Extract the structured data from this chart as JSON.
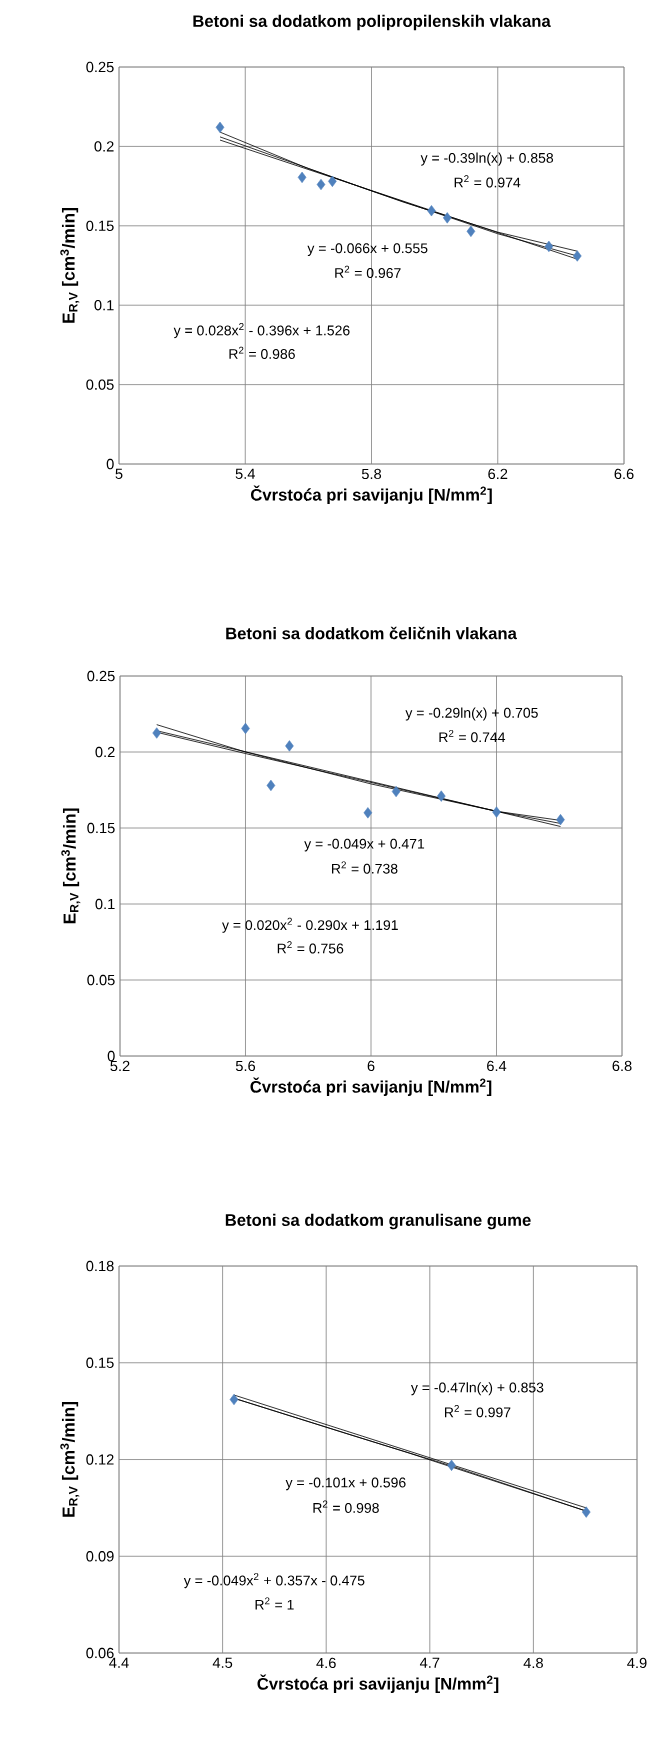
{
  "chart_data": [
    {
      "type": "scatter",
      "title": "Betoni sa dodatkom polipropilenskih vlakana",
      "xlabel": "Čvrstoća pri savijanju [N/mm$^{2}$]",
      "ylabel": "E$_{R,V}$ [cm$^{3}$/min]",
      "xlim": [
        5,
        6.6
      ],
      "xticks": [
        5,
        5.4,
        5.8,
        6.2,
        6.6
      ],
      "ylim": [
        0,
        0.25
      ],
      "yticks": [
        0,
        0.05,
        0.1,
        0.15,
        0.2,
        0.25
      ],
      "grid": true,
      "marker": "diamond",
      "series": [
        {
          "color": "#4f81bd",
          "x": [
            5.32,
            5.58,
            5.64,
            5.676,
            5.99,
            6.04,
            6.115,
            6.362,
            6.452
          ],
          "values": [
            0.212,
            0.1805,
            0.176,
            0.178,
            0.1595,
            0.155,
            0.1465,
            0.137,
            0.131
          ]
        },
        {
          "type": "line",
          "marker": "none",
          "color": "#000000",
          "x": [
            5.32,
            6.452
          ],
          "values": [
            0.204,
            0.129
          ]
        },
        {
          "type": "line",
          "marker": "none",
          "color": "#000000",
          "x": [
            5.32,
            5.8,
            6.2,
            6.452
          ],
          "values": [
            0.206,
            0.172,
            0.145,
            0.131
          ]
        },
        {
          "type": "line",
          "marker": "none",
          "color": "#000000",
          "x": [
            5.32,
            5.6,
            5.9,
            6.2,
            6.452
          ],
          "values": [
            0.209,
            0.186,
            0.165,
            0.146,
            0.134
          ]
        }
      ],
      "annotations": [
        "y = -0.39ln(x) + 0.858",
        "R$^{2}$ = 0.974",
        "y = -0.066x + 0.555",
        "R$^{2}$ = 0.967",
        "y = 0.028x$^{2}$ - 0.396x + 1.526",
        "R$^{2}$ = 0.986"
      ]
    },
    {
      "type": "scatter",
      "title": "Betoni sa dodatkom čeličnih vlakana",
      "xlabel": "Čvrstoća pri savijanju [N/mm$^{2}$]",
      "ylabel": "E$_{R,V}$ [cm$^{3}$/min]",
      "xlim": [
        5.2,
        6.8
      ],
      "xticks": [
        5.2,
        5.6,
        6,
        6.4,
        6.8
      ],
      "ylim": [
        0,
        0.25
      ],
      "yticks": [
        0,
        0.05,
        0.1,
        0.15,
        0.2,
        0.25
      ],
      "grid": true,
      "marker": "diamond",
      "series": [
        {
          "color": "#4f81bd",
          "x": [
            5.317,
            5.6,
            5.681,
            5.74,
            5.99,
            6.08,
            6.224,
            6.4,
            6.604
          ],
          "values": [
            0.2125,
            0.2155,
            0.178,
            0.204,
            0.16,
            0.174,
            0.171,
            0.1605,
            0.1555
          ]
        },
        {
          "type": "line",
          "marker": "none",
          "color": "#000000",
          "x": [
            5.317,
            6.604
          ],
          "values": [
            0.214,
            0.151
          ]
        },
        {
          "type": "line",
          "marker": "none",
          "color": "#000000",
          "x": [
            5.317,
            5.6,
            6.0,
            6.4,
            6.604
          ],
          "values": [
            0.218,
            0.2,
            0.179,
            0.161,
            0.155
          ]
        },
        {
          "type": "line",
          "marker": "none",
          "color": "#000000",
          "x": [
            5.317,
            5.6,
            6.0,
            6.4,
            6.604
          ],
          "values": [
            0.213,
            0.199,
            0.18,
            0.161,
            0.153
          ]
        }
      ],
      "annotations": [
        "y = -0.29ln(x) + 0.705",
        "R$^{2}$ = 0.744",
        "y = -0.049x + 0.471",
        "R$^{2}$ = 0.738",
        "y = 0.020x$^{2}$ - 0.290x + 1.191",
        "R$^{2}$ = 0.756"
      ]
    },
    {
      "type": "scatter",
      "title": "Betoni sa dodatkom granulisane gume",
      "xlabel": "Čvrstoća pri savijanju [N/mm$^{2}$]",
      "ylabel": "E$_{R,V}$ [cm$^{3}$/min]",
      "xlim": [
        4.4,
        4.9
      ],
      "xticks": [
        4.4,
        4.5,
        4.6,
        4.7,
        4.8,
        4.9
      ],
      "ylim": [
        0.06,
        0.18
      ],
      "yticks": [
        0.06,
        0.09,
        0.12,
        0.15,
        0.18
      ],
      "grid": true,
      "marker": "diamond",
      "series": [
        {
          "color": "#4f81bd",
          "x": [
            4.511,
            4.721,
            4.851
          ],
          "values": [
            0.1386,
            0.1182,
            0.1037
          ]
        },
        {
          "type": "line",
          "marker": "none",
          "color": "#000000",
          "x": [
            4.511,
            4.851
          ],
          "values": [
            0.14,
            0.105
          ]
        },
        {
          "type": "line",
          "marker": "none",
          "color": "#000000",
          "x": [
            4.511,
            4.68,
            4.851
          ],
          "values": [
            0.139,
            0.122,
            0.104
          ]
        },
        {
          "type": "line",
          "marker": "none",
          "color": "#000000",
          "x": [
            4.511,
            4.62,
            4.721,
            4.851
          ],
          "values": [
            0.139,
            0.128,
            0.118,
            0.104
          ]
        }
      ],
      "annotations": [
        "y = -0.47ln(x) + 0.853",
        "R$^{2}$ = 0.997",
        "y = -0.101x + 0.596",
        "R$^{2}$ = 0.998",
        "y = -0.049x$^{2}$ + 0.357x - 0.475",
        "R$^{2}$ = 1"
      ]
    }
  ]
}
